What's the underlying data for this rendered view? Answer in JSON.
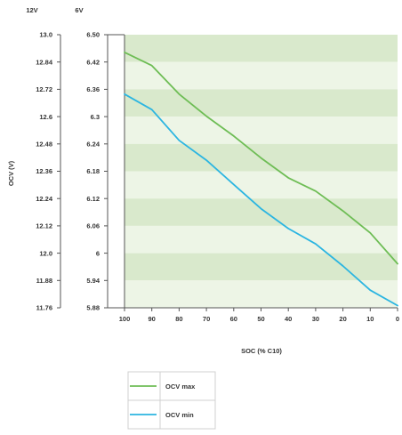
{
  "chart_data": {
    "type": "line",
    "xlabel": "SOC (% C10)",
    "ylabel": "OCV (V)",
    "y_axis_headers": [
      "12V",
      "6V"
    ],
    "x": [
      100,
      90,
      80,
      70,
      60,
      50,
      40,
      30,
      20,
      10,
      0
    ],
    "x_tick_labels": [
      "100",
      "90",
      "80",
      "70",
      "60",
      "50",
      "40",
      "30",
      "20",
      "10",
      "0"
    ],
    "x_reversed": true,
    "xlim": [
      100,
      0
    ],
    "ylim": [
      11.76,
      13.0
    ],
    "y_ticks_12v": [
      "13.0",
      "12.84",
      "12.72",
      "12.6",
      "12.48",
      "12.36",
      "12.24",
      "12.12",
      "12.0",
      "11.88",
      "11.76"
    ],
    "y_ticks_6v": [
      "6.50",
      "6.42",
      "6.36",
      "6.3",
      "6.24",
      "6.18",
      "6.12",
      "6.06",
      "6",
      "5.94",
      "5.88"
    ],
    "grid": "horizontal bands",
    "legend_position": "bottom-left",
    "series": [
      {
        "name": "OCV max",
        "color": "#6ebd55",
        "values": [
          12.92,
          12.86,
          12.73,
          12.63,
          12.54,
          12.44,
          12.35,
          12.29,
          12.2,
          12.1,
          11.96
        ]
      },
      {
        "name": "OCV min",
        "color": "#2bb5e1",
        "values": [
          12.73,
          12.66,
          12.52,
          12.43,
          12.32,
          12.21,
          12.12,
          12.05,
          11.95,
          11.84,
          11.77
        ]
      }
    ]
  }
}
